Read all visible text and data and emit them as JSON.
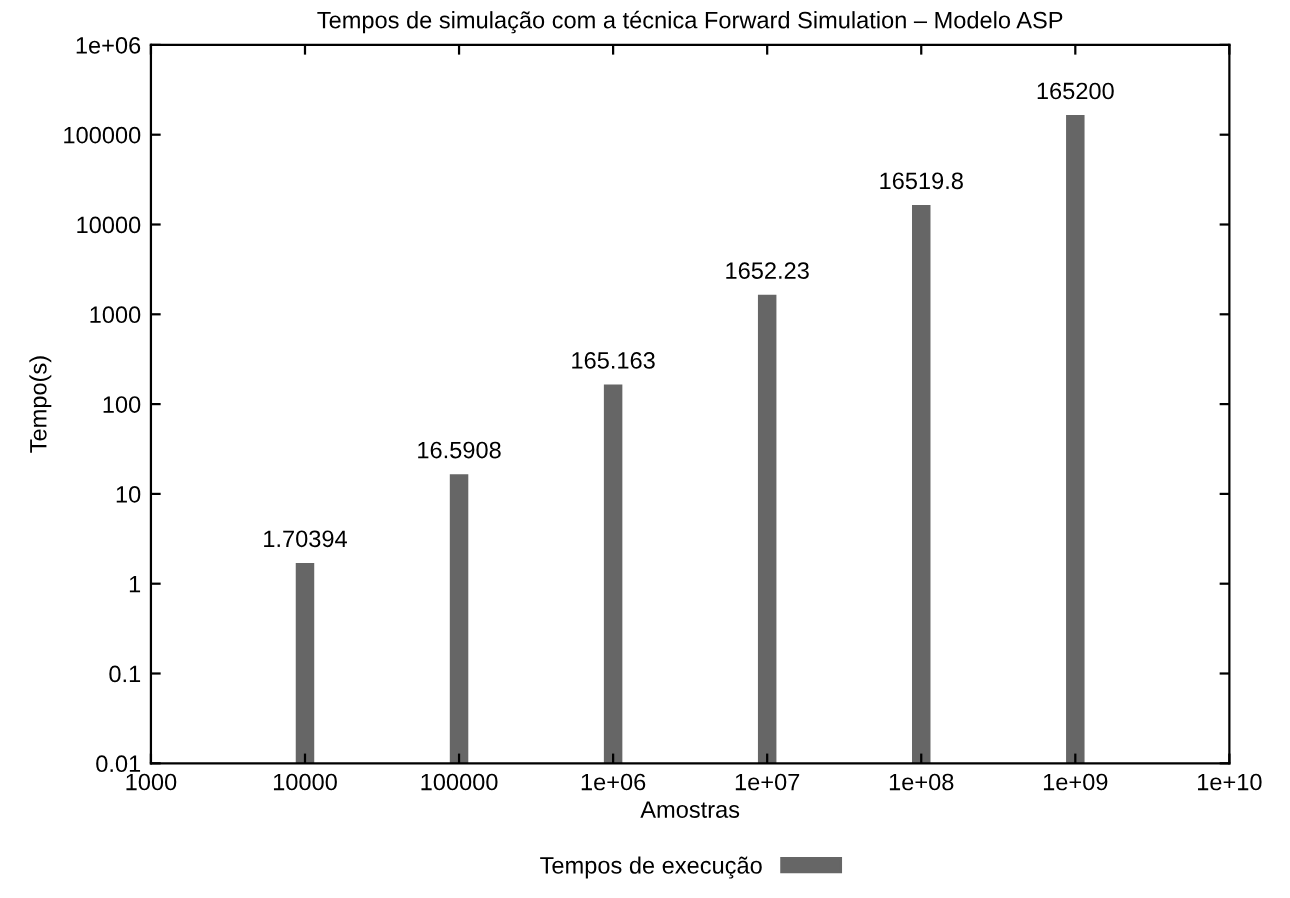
{
  "chart_data": {
    "type": "bar",
    "title": "Tempos de simulação com a técnica Forward Simulation – Modelo ASP",
    "xlabel": "Amostras",
    "ylabel": "Tempo(s)",
    "x": [
      10000,
      100000,
      1000000,
      10000000,
      100000000,
      1000000000
    ],
    "series": [
      {
        "name": "Tempos de execução",
        "color": "#666666",
        "values": [
          1.70394,
          16.5908,
          165.163,
          1652.23,
          16519.8,
          165200
        ]
      }
    ],
    "log": "xy",
    "xlim": [
      1000,
      10000000000
    ],
    "ylim": [
      0.01,
      1000000
    ],
    "xticks": [
      1000,
      10000,
      100000,
      {
        "value": 1000000,
        "label": "1e+06"
      },
      {
        "value": 10000000,
        "label": "1e+07"
      },
      {
        "value": 100000000,
        "label": "1e+08"
      },
      {
        "value": 1000000000,
        "label": "1e+09"
      },
      {
        "value": 10000000000,
        "label": "1e+10"
      }
    ],
    "yticks": [
      0.01,
      0.1,
      1,
      10,
      100,
      1000,
      10000,
      100000,
      {
        "value": 1000000,
        "label": "1e+06"
      }
    ],
    "data_labels": true,
    "legend": "bottom",
    "grid": false
  }
}
